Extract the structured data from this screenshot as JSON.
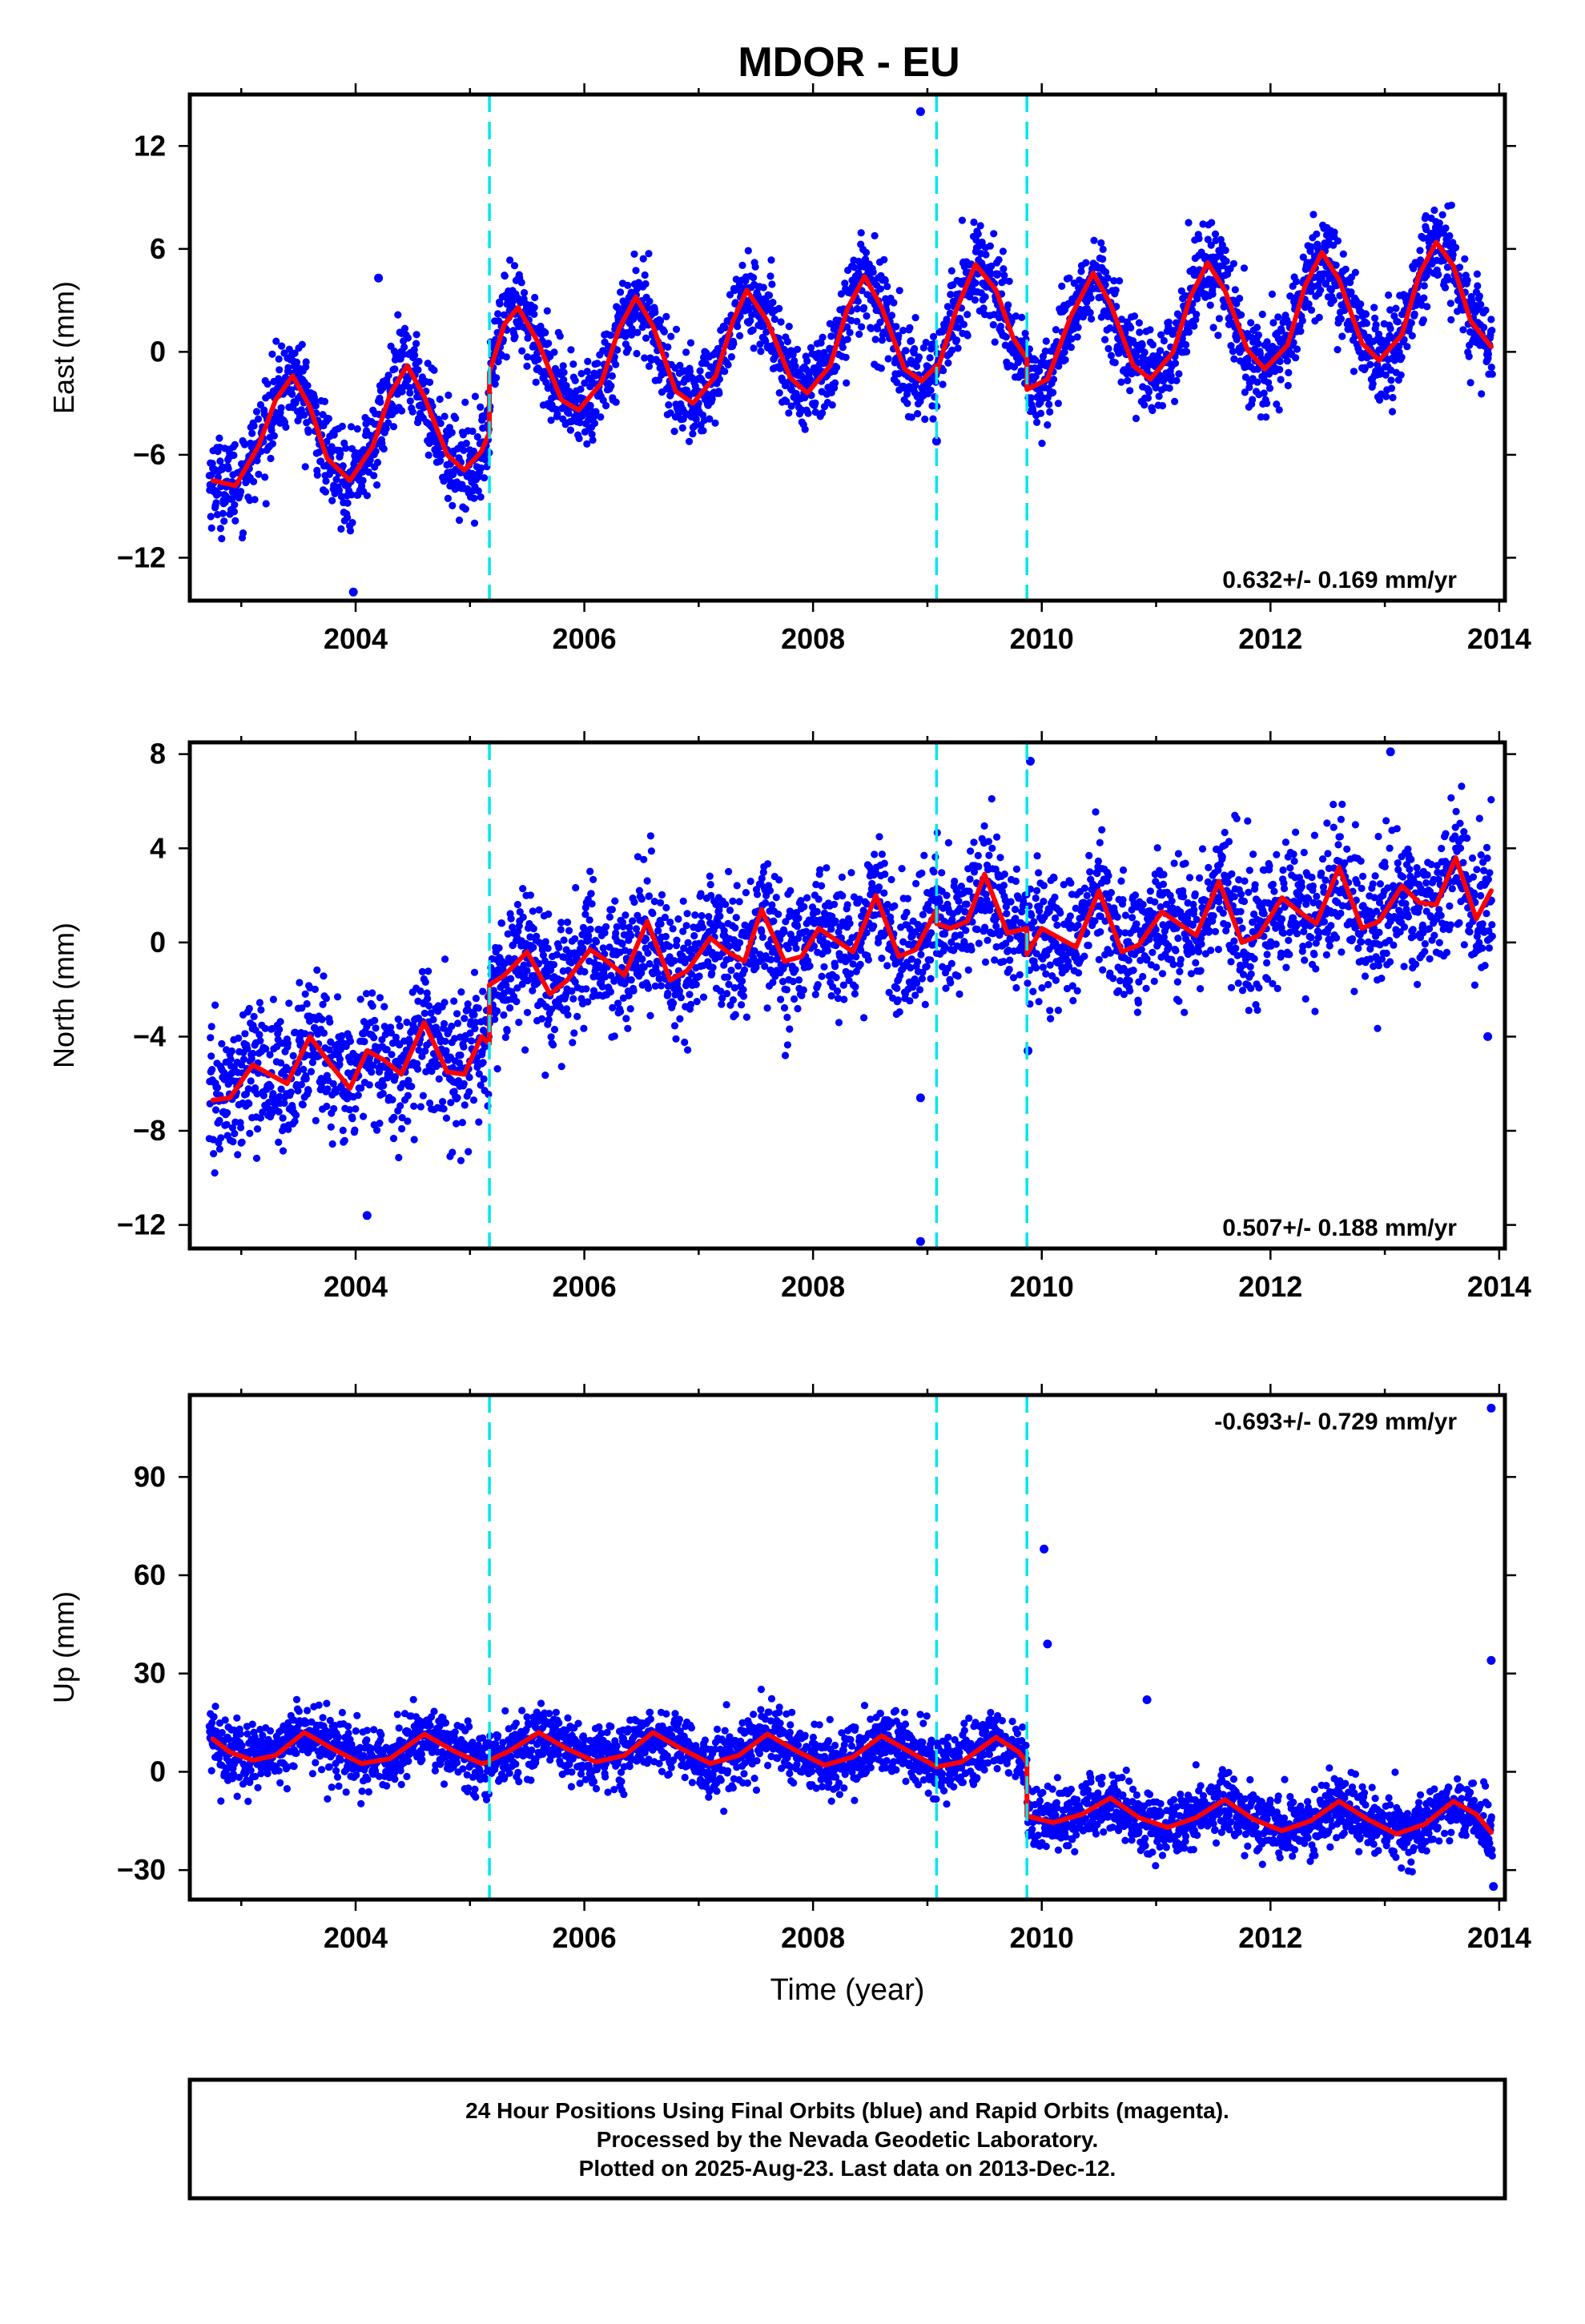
{
  "figure_title": "MDOR - EU",
  "footer": {
    "lines": [
      "24 Hour Positions Using Final Orbits (blue) and Rapid Orbits (magenta).",
      "Processed by the Nevada Geodetic Laboratory.",
      "Plotted on 2025-Aug-23. Last data on 2013-Dec-12."
    ]
  },
  "colors": {
    "points": "#0000ff",
    "model": "#ff0000",
    "breaks": "#00e5ee",
    "frame": "#000000"
  },
  "chart_data": [
    {
      "type": "scatter",
      "panel": "east",
      "title": "",
      "xlabel": "",
      "ylabel": "East (mm)",
      "xlim": [
        2002.55,
        2014.05
      ],
      "ylim": [
        -14.5,
        15
      ],
      "xticks": [
        2004,
        2006,
        2008,
        2010,
        2012,
        2014
      ],
      "yticks": [
        -12,
        -6,
        0,
        6,
        12
      ],
      "rate_label": "0.632+/- 0.169 mm/yr",
      "rate_position": "bottom-right",
      "breaks": [
        2005.17,
        2009.08,
        2009.87
      ],
      "legend": "none",
      "grid": false,
      "model_line": [
        {
          "x": 2002.75,
          "y": -7.5
        },
        {
          "x": 2002.95,
          "y": -7.8
        },
        {
          "x": 2003.15,
          "y": -5.5
        },
        {
          "x": 2003.3,
          "y": -2.8
        },
        {
          "x": 2003.45,
          "y": -1.4
        },
        {
          "x": 2003.6,
          "y": -3.2
        },
        {
          "x": 2003.75,
          "y": -6.2
        },
        {
          "x": 2003.95,
          "y": -7.5
        },
        {
          "x": 2004.15,
          "y": -5.5
        },
        {
          "x": 2004.3,
          "y": -2.5
        },
        {
          "x": 2004.45,
          "y": -0.8
        },
        {
          "x": 2004.6,
          "y": -2.6
        },
        {
          "x": 2004.8,
          "y": -6.0
        },
        {
          "x": 2004.95,
          "y": -6.9
        },
        {
          "x": 2005.1,
          "y": -5.8
        },
        {
          "x": 2005.17,
          "y": -4.7
        },
        {
          "x": 2005.17,
          "y": -1.2
        },
        {
          "x": 2005.3,
          "y": 1.6
        },
        {
          "x": 2005.42,
          "y": 2.6
        },
        {
          "x": 2005.6,
          "y": 0.5
        },
        {
          "x": 2005.8,
          "y": -2.8
        },
        {
          "x": 2005.95,
          "y": -3.4
        },
        {
          "x": 2006.15,
          "y": -1.8
        },
        {
          "x": 2006.3,
          "y": 1.3
        },
        {
          "x": 2006.45,
          "y": 3.2
        },
        {
          "x": 2006.6,
          "y": 1.5
        },
        {
          "x": 2006.8,
          "y": -2.3
        },
        {
          "x": 2006.95,
          "y": -3.0
        },
        {
          "x": 2007.15,
          "y": -1.4
        },
        {
          "x": 2007.3,
          "y": 1.8
        },
        {
          "x": 2007.42,
          "y": 3.6
        },
        {
          "x": 2007.6,
          "y": 1.8
        },
        {
          "x": 2007.8,
          "y": -1.5
        },
        {
          "x": 2007.95,
          "y": -2.4
        },
        {
          "x": 2008.15,
          "y": -0.8
        },
        {
          "x": 2008.3,
          "y": 2.5
        },
        {
          "x": 2008.45,
          "y": 4.4
        },
        {
          "x": 2008.6,
          "y": 2.6
        },
        {
          "x": 2008.8,
          "y": -1.0
        },
        {
          "x": 2008.95,
          "y": -1.7
        },
        {
          "x": 2009.08,
          "y": -0.8
        },
        {
          "x": 2009.08,
          "y": -1.2
        },
        {
          "x": 2009.25,
          "y": 2.4
        },
        {
          "x": 2009.42,
          "y": 5.1
        },
        {
          "x": 2009.6,
          "y": 3.6
        },
        {
          "x": 2009.75,
          "y": 0.8
        },
        {
          "x": 2009.87,
          "y": -0.4
        },
        {
          "x": 2009.87,
          "y": -2.2
        },
        {
          "x": 2010.05,
          "y": -1.6
        },
        {
          "x": 2010.25,
          "y": 2.0
        },
        {
          "x": 2010.45,
          "y": 4.6
        },
        {
          "x": 2010.6,
          "y": 2.8
        },
        {
          "x": 2010.8,
          "y": -0.8
        },
        {
          "x": 2010.95,
          "y": -1.6
        },
        {
          "x": 2011.15,
          "y": 0.0
        },
        {
          "x": 2011.3,
          "y": 3.2
        },
        {
          "x": 2011.45,
          "y": 5.2
        },
        {
          "x": 2011.6,
          "y": 3.6
        },
        {
          "x": 2011.8,
          "y": 0.1
        },
        {
          "x": 2011.95,
          "y": -1.0
        },
        {
          "x": 2012.15,
          "y": 0.4
        },
        {
          "x": 2012.3,
          "y": 3.8
        },
        {
          "x": 2012.45,
          "y": 5.8
        },
        {
          "x": 2012.6,
          "y": 4.2
        },
        {
          "x": 2012.8,
          "y": 0.5
        },
        {
          "x": 2012.95,
          "y": -0.5
        },
        {
          "x": 2013.15,
          "y": 1.0
        },
        {
          "x": 2013.3,
          "y": 4.5
        },
        {
          "x": 2013.45,
          "y": 6.4
        },
        {
          "x": 2013.6,
          "y": 5.0
        },
        {
          "x": 2013.75,
          "y": 1.8
        },
        {
          "x": 2013.93,
          "y": 0.3
        }
      ],
      "scatter_model": {
        "x_start": 2002.72,
        "x_end": 2013.94,
        "n_points": 3300,
        "noise_sd": 1.3,
        "outliers": [
          {
            "x": 2008.94,
            "y": 14.0
          },
          {
            "x": 2009.08,
            "y": -5.2
          },
          {
            "x": 2004.2,
            "y": 4.3
          },
          {
            "x": 2003.98,
            "y": -14.0
          }
        ]
      }
    },
    {
      "type": "scatter",
      "panel": "north",
      "title": "",
      "xlabel": "",
      "ylabel": "North (mm)",
      "xlim": [
        2002.55,
        2014.05
      ],
      "ylim": [
        -13,
        8.5
      ],
      "xticks": [
        2004,
        2006,
        2008,
        2010,
        2012,
        2014
      ],
      "yticks": [
        -12,
        -8,
        -4,
        0,
        4,
        8
      ],
      "rate_label": "0.507+/- 0.188 mm/yr",
      "rate_position": "bottom-right",
      "breaks": [
        2005.17,
        2009.08,
        2009.87
      ],
      "legend": "none",
      "grid": false,
      "model_line": [
        {
          "x": 2002.75,
          "y": -6.7
        },
        {
          "x": 2002.9,
          "y": -6.6
        },
        {
          "x": 2003.1,
          "y": -5.2
        },
        {
          "x": 2003.25,
          "y": -5.6
        },
        {
          "x": 2003.4,
          "y": -6.0
        },
        {
          "x": 2003.6,
          "y": -4.0
        },
        {
          "x": 2003.8,
          "y": -5.3
        },
        {
          "x": 2003.95,
          "y": -6.2
        },
        {
          "x": 2004.1,
          "y": -4.6
        },
        {
          "x": 2004.25,
          "y": -5.0
        },
        {
          "x": 2004.4,
          "y": -5.6
        },
        {
          "x": 2004.6,
          "y": -3.4
        },
        {
          "x": 2004.8,
          "y": -5.5
        },
        {
          "x": 2004.95,
          "y": -5.6
        },
        {
          "x": 2005.1,
          "y": -4.0
        },
        {
          "x": 2005.17,
          "y": -4.3
        },
        {
          "x": 2005.17,
          "y": -1.8
        },
        {
          "x": 2005.3,
          "y": -1.4
        },
        {
          "x": 2005.5,
          "y": -0.4
        },
        {
          "x": 2005.7,
          "y": -2.2
        },
        {
          "x": 2005.85,
          "y": -1.6
        },
        {
          "x": 2006.05,
          "y": -0.3
        },
        {
          "x": 2006.2,
          "y": -0.8
        },
        {
          "x": 2006.35,
          "y": -1.4
        },
        {
          "x": 2006.55,
          "y": 0.9
        },
        {
          "x": 2006.75,
          "y": -1.6
        },
        {
          "x": 2006.9,
          "y": -1.2
        },
        {
          "x": 2007.1,
          "y": 0.2
        },
        {
          "x": 2007.25,
          "y": -0.4
        },
        {
          "x": 2007.4,
          "y": -0.8
        },
        {
          "x": 2007.55,
          "y": 1.4
        },
        {
          "x": 2007.75,
          "y": -0.8
        },
        {
          "x": 2007.9,
          "y": -0.6
        },
        {
          "x": 2008.05,
          "y": 0.6
        },
        {
          "x": 2008.2,
          "y": 0.1
        },
        {
          "x": 2008.35,
          "y": -0.4
        },
        {
          "x": 2008.55,
          "y": 2.0
        },
        {
          "x": 2008.75,
          "y": -0.6
        },
        {
          "x": 2008.9,
          "y": -0.3
        },
        {
          "x": 2009.08,
          "y": 1.4
        },
        {
          "x": 2009.08,
          "y": 0.8
        },
        {
          "x": 2009.2,
          "y": 0.6
        },
        {
          "x": 2009.35,
          "y": 0.9
        },
        {
          "x": 2009.5,
          "y": 2.9
        },
        {
          "x": 2009.7,
          "y": 0.4
        },
        {
          "x": 2009.87,
          "y": 0.6
        },
        {
          "x": 2009.87,
          "y": -0.5
        },
        {
          "x": 2010.0,
          "y": 0.6
        },
        {
          "x": 2010.15,
          "y": 0.2
        },
        {
          "x": 2010.3,
          "y": -0.2
        },
        {
          "x": 2010.5,
          "y": 2.2
        },
        {
          "x": 2010.7,
          "y": -0.4
        },
        {
          "x": 2010.85,
          "y": -0.1
        },
        {
          "x": 2011.05,
          "y": 1.3
        },
        {
          "x": 2011.2,
          "y": 0.8
        },
        {
          "x": 2011.35,
          "y": 0.3
        },
        {
          "x": 2011.55,
          "y": 2.6
        },
        {
          "x": 2011.75,
          "y": 0.0
        },
        {
          "x": 2011.9,
          "y": 0.3
        },
        {
          "x": 2012.1,
          "y": 1.9
        },
        {
          "x": 2012.25,
          "y": 1.3
        },
        {
          "x": 2012.4,
          "y": 0.8
        },
        {
          "x": 2012.6,
          "y": 3.2
        },
        {
          "x": 2012.8,
          "y": 0.6
        },
        {
          "x": 2012.95,
          "y": 0.9
        },
        {
          "x": 2013.15,
          "y": 2.4
        },
        {
          "x": 2013.3,
          "y": 1.7
        },
        {
          "x": 2013.45,
          "y": 1.6
        },
        {
          "x": 2013.62,
          "y": 3.6
        },
        {
          "x": 2013.8,
          "y": 1.0
        },
        {
          "x": 2013.93,
          "y": 2.2
        }
      ],
      "scatter_model": {
        "x_start": 2002.72,
        "x_end": 2013.94,
        "n_points": 3300,
        "noise_sd": 1.4,
        "outliers": [
          {
            "x": 2008.94,
            "y": -12.7
          },
          {
            "x": 2008.94,
            "y": -6.6
          },
          {
            "x": 2009.9,
            "y": 7.7
          },
          {
            "x": 2013.05,
            "y": 8.1
          },
          {
            "x": 2004.1,
            "y": -11.6
          },
          {
            "x": 2013.9,
            "y": -4.0
          },
          {
            "x": 2009.88,
            "y": -4.6
          }
        ]
      }
    },
    {
      "type": "scatter",
      "panel": "up",
      "title": "",
      "xlabel": "Time (year)",
      "ylabel": "Up (mm)",
      "xlim": [
        2002.55,
        2014.05
      ],
      "ylim": [
        -39,
        115
      ],
      "xticks": [
        2004,
        2006,
        2008,
        2010,
        2012,
        2014
      ],
      "yticks": [
        -30,
        0,
        30,
        60,
        90
      ],
      "rate_label": "-0.693+/- 0.729 mm/yr",
      "rate_position": "top-right",
      "breaks": [
        2005.17,
        2009.08,
        2009.87
      ],
      "legend": "none",
      "grid": false,
      "model_line": [
        {
          "x": 2002.75,
          "y": 10.0
        },
        {
          "x": 2002.9,
          "y": 6.0
        },
        {
          "x": 2003.1,
          "y": 3.5
        },
        {
          "x": 2003.3,
          "y": 5.0
        },
        {
          "x": 2003.55,
          "y": 12.0
        },
        {
          "x": 2003.8,
          "y": 7.0
        },
        {
          "x": 2004.05,
          "y": 2.5
        },
        {
          "x": 2004.3,
          "y": 4.0
        },
        {
          "x": 2004.6,
          "y": 11.5
        },
        {
          "x": 2004.85,
          "y": 6.5
        },
        {
          "x": 2005.1,
          "y": 2.5
        },
        {
          "x": 2005.17,
          "y": 3.0
        },
        {
          "x": 2005.17,
          "y": 3.5
        },
        {
          "x": 2005.35,
          "y": 6.5
        },
        {
          "x": 2005.6,
          "y": 12.0
        },
        {
          "x": 2005.85,
          "y": 7.0
        },
        {
          "x": 2006.1,
          "y": 3.0
        },
        {
          "x": 2006.35,
          "y": 5.0
        },
        {
          "x": 2006.6,
          "y": 12.0
        },
        {
          "x": 2006.85,
          "y": 7.0
        },
        {
          "x": 2007.1,
          "y": 2.5
        },
        {
          "x": 2007.35,
          "y": 5.0
        },
        {
          "x": 2007.6,
          "y": 11.5
        },
        {
          "x": 2007.85,
          "y": 6.5
        },
        {
          "x": 2008.1,
          "y": 2.0
        },
        {
          "x": 2008.35,
          "y": 4.5
        },
        {
          "x": 2008.6,
          "y": 11.0
        },
        {
          "x": 2008.85,
          "y": 6.0
        },
        {
          "x": 2009.08,
          "y": 1.5
        },
        {
          "x": 2009.08,
          "y": 1.5
        },
        {
          "x": 2009.3,
          "y": 3.0
        },
        {
          "x": 2009.6,
          "y": 10.5
        },
        {
          "x": 2009.8,
          "y": 6.0
        },
        {
          "x": 2009.87,
          "y": 3.0
        },
        {
          "x": 2009.87,
          "y": -13.5
        },
        {
          "x": 2010.1,
          "y": -15.5
        },
        {
          "x": 2010.35,
          "y": -13.0
        },
        {
          "x": 2010.6,
          "y": -8.0
        },
        {
          "x": 2010.85,
          "y": -14.0
        },
        {
          "x": 2011.1,
          "y": -17.0
        },
        {
          "x": 2011.35,
          "y": -14.0
        },
        {
          "x": 2011.6,
          "y": -8.5
        },
        {
          "x": 2011.85,
          "y": -14.5
        },
        {
          "x": 2012.1,
          "y": -18.0
        },
        {
          "x": 2012.35,
          "y": -15.0
        },
        {
          "x": 2012.6,
          "y": -9.0
        },
        {
          "x": 2012.85,
          "y": -14.5
        },
        {
          "x": 2013.1,
          "y": -19.0
        },
        {
          "x": 2013.35,
          "y": -16.0
        },
        {
          "x": 2013.6,
          "y": -9.0
        },
        {
          "x": 2013.8,
          "y": -13.0
        },
        {
          "x": 2013.93,
          "y": -18.5
        }
      ],
      "scatter_model": {
        "x_start": 2002.72,
        "x_end": 2013.94,
        "n_points": 3300,
        "noise_sd": 4.8,
        "outliers": [
          {
            "x": 2013.93,
            "y": 111.0
          },
          {
            "x": 2010.02,
            "y": 68.0
          },
          {
            "x": 2010.05,
            "y": 39.0
          },
          {
            "x": 2013.93,
            "y": 34.0
          },
          {
            "x": 2010.92,
            "y": 22.0
          },
          {
            "x": 2013.95,
            "y": -35.0
          }
        ]
      }
    }
  ]
}
